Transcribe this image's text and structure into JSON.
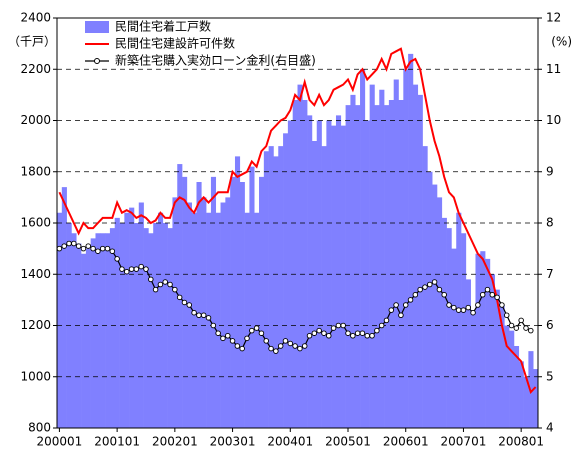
{
  "chart_data": {
    "type": "bar_line",
    "y_label": "（千戸）",
    "y2_label": "(%)",
    "categories": [
      "200001",
      null,
      null,
      null,
      null,
      null,
      null,
      null,
      null,
      null,
      null,
      null,
      "200101",
      null,
      null,
      null,
      null,
      null,
      null,
      null,
      null,
      null,
      null,
      null,
      "200201",
      null,
      null,
      null,
      null,
      null,
      null,
      null,
      null,
      null,
      null,
      null,
      "200301",
      null,
      null,
      null,
      null,
      null,
      null,
      null,
      null,
      null,
      null,
      null,
      "200401",
      null,
      null,
      null,
      null,
      null,
      null,
      null,
      null,
      null,
      null,
      null,
      "200501",
      null,
      null,
      null,
      null,
      null,
      null,
      null,
      null,
      null,
      null,
      null,
      "200601",
      null,
      null,
      null,
      null,
      null,
      null,
      null,
      null,
      null,
      null,
      null,
      "200701",
      null,
      null,
      null,
      null,
      null,
      null,
      null,
      null,
      null,
      null,
      null,
      "200801",
      null,
      null,
      null
    ],
    "series": [
      {
        "name": "民間住宅着工戸数",
        "kind": "bar",
        "color": "#8080ff",
        "values": [
          1640,
          1740,
          1600,
          1560,
          1520,
          1480,
          1500,
          1540,
          1560,
          1560,
          1560,
          1580,
          1620,
          1600,
          1640,
          1660,
          1600,
          1680,
          1580,
          1560,
          1600,
          1640,
          1600,
          1580,
          1700,
          1830,
          1780,
          1680,
          1640,
          1760,
          1700,
          1640,
          1780,
          1640,
          1680,
          1700,
          1780,
          1860,
          1760,
          1640,
          1820,
          1640,
          1780,
          1880,
          1900,
          1860,
          1900,
          1950,
          2000,
          2080,
          2140,
          2080,
          2020,
          1920,
          2000,
          1900,
          2000,
          1980,
          2020,
          1980,
          2060,
          2100,
          2060,
          2200,
          2000,
          2140,
          2060,
          2120,
          2060,
          2080,
          2160,
          2080,
          2200,
          2260,
          2140,
          2100,
          1900,
          1800,
          1750,
          1700,
          1620,
          1580,
          1500,
          1640,
          1560,
          1380,
          1260,
          1480,
          1490,
          1460,
          1400,
          1340,
          1280,
          1200,
          1180,
          1120,
          1060,
          1000,
          1100,
          1030
        ]
      },
      {
        "name": "民間住宅建設許可件数",
        "kind": "line",
        "color": "#ff0000",
        "values": [
          1720,
          1680,
          1640,
          1600,
          1560,
          1600,
          1580,
          1580,
          1600,
          1620,
          1620,
          1620,
          1680,
          1640,
          1650,
          1640,
          1620,
          1630,
          1620,
          1600,
          1610,
          1640,
          1620,
          1620,
          1680,
          1700,
          1690,
          1660,
          1640,
          1680,
          1700,
          1680,
          1700,
          1720,
          1720,
          1720,
          1800,
          1780,
          1790,
          1800,
          1840,
          1820,
          1880,
          1900,
          1960,
          1980,
          2000,
          2010,
          2040,
          2100,
          2080,
          2150,
          2080,
          2060,
          2100,
          2060,
          2080,
          2120,
          2130,
          2140,
          2160,
          2120,
          2180,
          2200,
          2160,
          2180,
          2200,
          2240,
          2200,
          2260,
          2270,
          2280,
          2200,
          2230,
          2240,
          2200,
          2100,
          2000,
          1920,
          1860,
          1780,
          1720,
          1700,
          1640,
          1600,
          1560,
          1520,
          1480,
          1460,
          1420,
          1380,
          1300,
          1200,
          1120,
          1100,
          1080,
          1060,
          1000,
          940,
          960
        ]
      },
      {
        "name": "新築住宅購入実効ローン金利(右目盛)",
        "kind": "line",
        "axis": "y2",
        "marker": "circle",
        "color": "#000000",
        "values": [
          7.5,
          7.55,
          7.6,
          7.6,
          7.55,
          7.5,
          7.55,
          7.5,
          7.45,
          7.5,
          7.5,
          7.45,
          7.3,
          7.1,
          7.05,
          7.1,
          7.1,
          7.15,
          7.1,
          6.9,
          6.7,
          6.8,
          6.85,
          6.8,
          6.7,
          6.55,
          6.45,
          6.4,
          6.25,
          6.2,
          6.2,
          6.15,
          6.0,
          5.85,
          5.75,
          5.8,
          5.7,
          5.6,
          5.55,
          5.75,
          5.9,
          5.95,
          5.85,
          5.7,
          5.55,
          5.5,
          5.6,
          5.7,
          5.65,
          5.6,
          5.55,
          5.6,
          5.8,
          5.85,
          5.9,
          5.85,
          5.8,
          5.95,
          6.0,
          6.0,
          5.85,
          5.8,
          5.85,
          5.85,
          5.8,
          5.8,
          5.9,
          6.0,
          6.1,
          6.3,
          6.4,
          6.2,
          6.4,
          6.5,
          6.6,
          6.7,
          6.75,
          6.8,
          6.85,
          6.7,
          6.6,
          6.4,
          6.35,
          6.3,
          6.3,
          6.35,
          6.25,
          6.4,
          6.6,
          6.7,
          6.6,
          6.55,
          6.4,
          6.2,
          6.0,
          5.95,
          6.1,
          5.95,
          5.9,
          null
        ]
      }
    ],
    "ylim": [
      800,
      2400
    ],
    "yticks": [
      800,
      1000,
      1200,
      1400,
      1600,
      1800,
      2000,
      2200,
      2400
    ],
    "y2lim": [
      4,
      12
    ],
    "y2ticks": [
      4,
      5,
      6,
      7,
      8,
      9,
      10,
      11,
      12
    ],
    "grid": true,
    "legend": "upper left"
  }
}
